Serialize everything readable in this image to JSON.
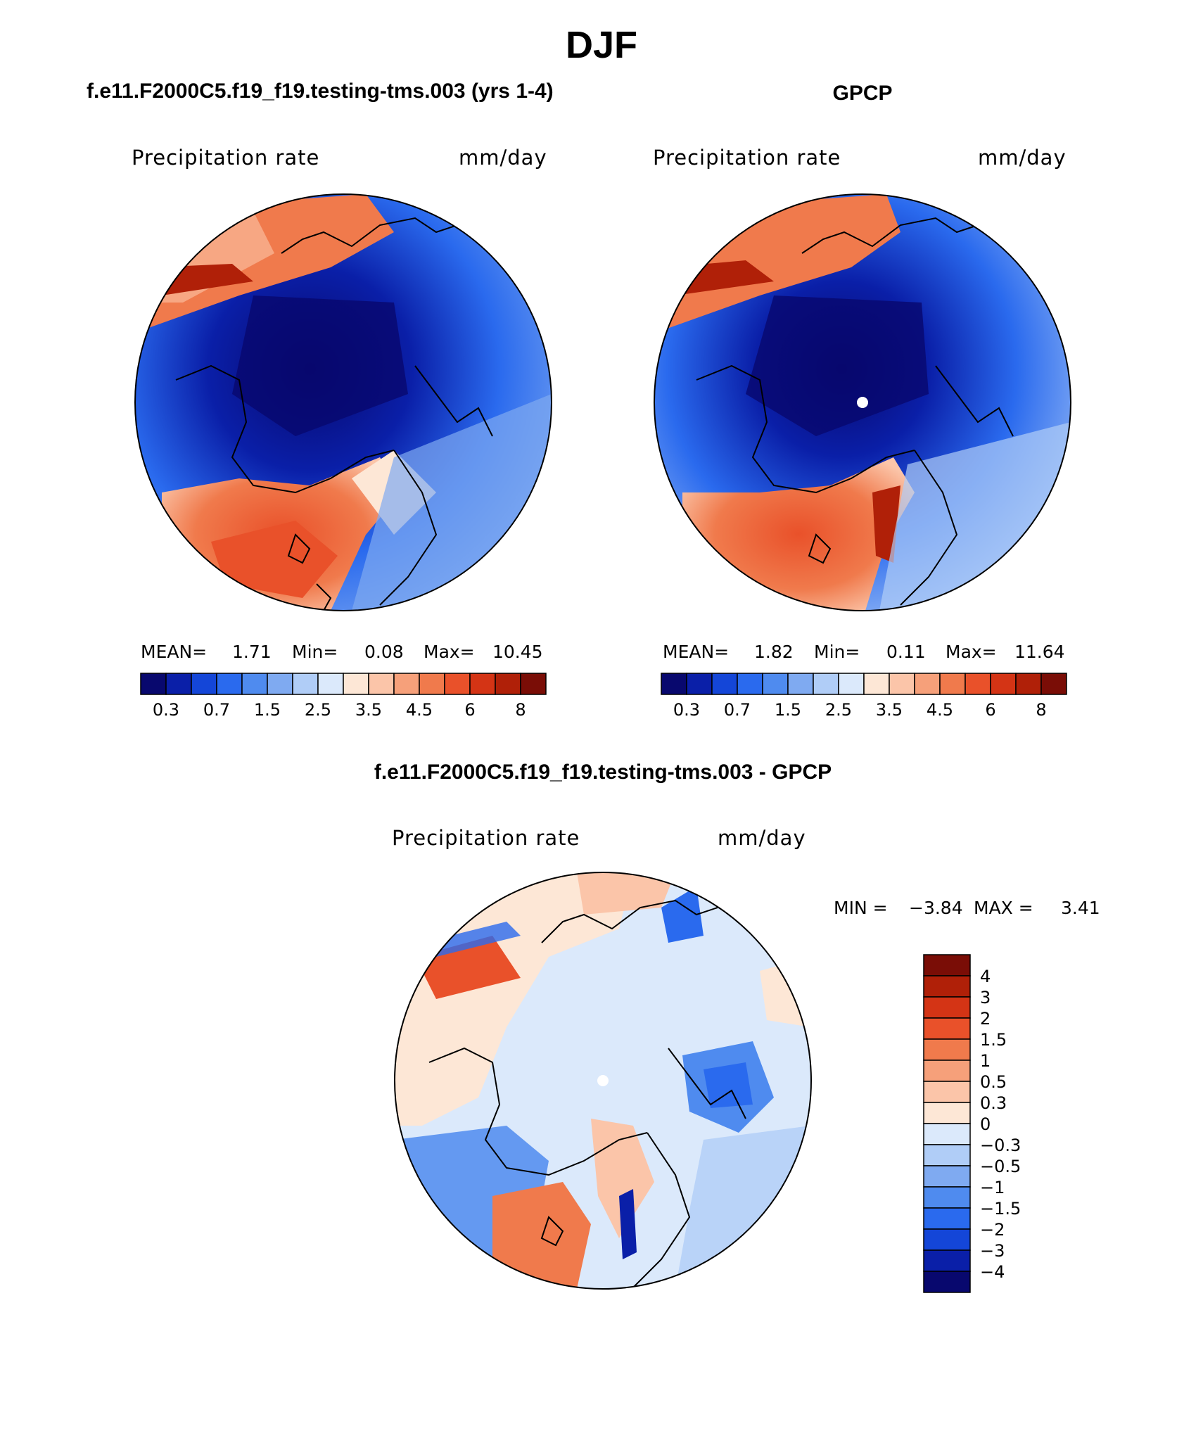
{
  "season": "DJF",
  "model_case": "f.e11.F2000C5.f19_f19.testing-tms.003 (yrs 1-4)",
  "obs_case": "GPCP",
  "diff_title": "f.e11.F2000C5.f19_f19.testing-tms.003 - GPCP",
  "panels": {
    "model": {
      "variable": "Precipitation rate",
      "units": "mm/day",
      "stats": {
        "mean_label": "MEAN=",
        "mean": "1.71",
        "min_label": "Min=",
        "min": "0.08",
        "max_label": "Max=",
        "max": "10.45"
      }
    },
    "obs": {
      "variable": "Precipitation rate",
      "units": "mm/day",
      "stats": {
        "mean_label": "MEAN=",
        "mean": "1.82",
        "min_label": "Min=",
        "min": "0.11",
        "max_label": "Max=",
        "max": "11.64"
      }
    },
    "diff": {
      "variable": "Precipitation rate",
      "units": "mm/day",
      "stats": {
        "min_label": "MIN =",
        "min": "−3.84",
        "max_label": "MAX =",
        "max": "3.41"
      }
    }
  },
  "colorbar_abs": {
    "colors": [
      "#08086e",
      "#0a1fa8",
      "#1446d8",
      "#2a6aee",
      "#4f8bef",
      "#7faaf1",
      "#b0cdf7",
      "#dbe9fb",
      "#fde7d6",
      "#fbc5a9",
      "#f6a07a",
      "#f07a4c",
      "#e9512a",
      "#d43415",
      "#b02008",
      "#7a0d06"
    ],
    "labels": [
      "0.3",
      "0.7",
      "1.5",
      "2.5",
      "3.5",
      "4.5",
      "6",
      "8"
    ]
  },
  "colorbar_diff": {
    "colors": [
      "#7a0d06",
      "#b02008",
      "#d43415",
      "#e9512a",
      "#f07a4c",
      "#f6a07a",
      "#fbc5a9",
      "#fde7d6",
      "#dbe9fb",
      "#b0cdf7",
      "#7faaf1",
      "#4f8bef",
      "#2a6aee",
      "#1446d8",
      "#0a1fa8",
      "#08086e"
    ],
    "labels": [
      "4",
      "3",
      "2",
      "1.5",
      "1",
      "0.5",
      "0.3",
      "0",
      "−0.3",
      "−0.5",
      "−1",
      "−1.5",
      "−2",
      "−3",
      "−4"
    ]
  }
}
